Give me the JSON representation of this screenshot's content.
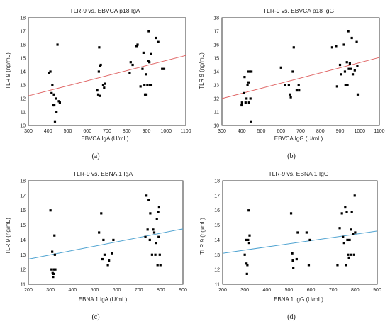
{
  "chart_data": [
    {
      "type": "scatter",
      "panel_label": "(a)",
      "title": "TLR-9 vs. EBVCA p18 IgA",
      "xlabel": "EBVCA IgA (U/mL)",
      "ylabel": "TLR 9 (ng/mL)",
      "xlim": [
        300,
        1100
      ],
      "ylim": [
        10,
        18
      ],
      "xticks": [
        300,
        400,
        500,
        600,
        700,
        800,
        900,
        1000,
        1100
      ],
      "yticks": [
        10,
        11,
        12,
        13,
        14,
        15,
        16,
        17,
        18
      ],
      "grid": true,
      "fit_color": "#e06666",
      "fit_line": [
        [
          300,
          12.2
        ],
        [
          1100,
          15.2
        ]
      ],
      "points": [
        [
          405,
          13.9
        ],
        [
          412,
          14.0
        ],
        [
          418,
          12.4
        ],
        [
          422,
          13.0
        ],
        [
          425,
          11.5
        ],
        [
          430,
          12.3
        ],
        [
          432,
          11.5
        ],
        [
          435,
          10.3
        ],
        [
          440,
          12.0
        ],
        [
          443,
          11.0
        ],
        [
          448,
          16.0
        ],
        [
          455,
          11.8
        ],
        [
          460,
          11.7
        ],
        [
          650,
          12.6
        ],
        [
          655,
          12.3
        ],
        [
          658,
          14.0
        ],
        [
          660,
          15.8
        ],
        [
          662,
          12.2
        ],
        [
          665,
          14.4
        ],
        [
          668,
          14.5
        ],
        [
          680,
          13.0
        ],
        [
          685,
          12.8
        ],
        [
          690,
          13.1
        ],
        [
          815,
          13.9
        ],
        [
          820,
          14.7
        ],
        [
          830,
          14.5
        ],
        [
          850,
          15.9
        ],
        [
          855,
          16.0
        ],
        [
          870,
          12.9
        ],
        [
          880,
          14.2
        ],
        [
          885,
          15.4
        ],
        [
          890,
          13.0
        ],
        [
          893,
          12.3
        ],
        [
          897,
          13.8
        ],
        [
          900,
          12.3
        ],
        [
          905,
          13.0
        ],
        [
          910,
          14.8
        ],
        [
          912,
          17.0
        ],
        [
          915,
          14.7
        ],
        [
          918,
          13.0
        ],
        [
          922,
          15.3
        ],
        [
          925,
          13.0
        ],
        [
          950,
          16.5
        ],
        [
          960,
          16.2
        ],
        [
          980,
          14.2
        ],
        [
          990,
          14.2
        ]
      ]
    },
    {
      "type": "scatter",
      "panel_label": "(b)",
      "title": "TLR-9 vs. EBVCA p18 IgG",
      "xlabel": "EBVCA IgG (U/mL)",
      "ylabel": "TLR 9 (ng/mL)",
      "xlim": [
        300,
        1100
      ],
      "ylim": [
        10,
        18
      ],
      "xticks": [
        300,
        400,
        500,
        600,
        700,
        800,
        900,
        1000,
        1100
      ],
      "yticks": [
        10,
        11,
        12,
        13,
        14,
        15,
        16,
        17,
        18
      ],
      "grid": true,
      "fit_color": "#e06666",
      "fit_line": [
        [
          300,
          12.0
        ],
        [
          1100,
          15.05
        ]
      ],
      "points": [
        [
          400,
          11.5
        ],
        [
          402,
          11.7
        ],
        [
          412,
          12.4
        ],
        [
          415,
          13.6
        ],
        [
          420,
          11.7
        ],
        [
          425,
          12.0
        ],
        [
          430,
          13.0
        ],
        [
          432,
          14.0
        ],
        [
          435,
          13.2
        ],
        [
          438,
          11.7
        ],
        [
          442,
          14.0
        ],
        [
          445,
          12.0
        ],
        [
          448,
          10.3
        ],
        [
          450,
          14.0
        ],
        [
          600,
          14.3
        ],
        [
          620,
          13.0
        ],
        [
          640,
          13.0
        ],
        [
          645,
          12.3
        ],
        [
          650,
          12.1
        ],
        [
          660,
          14.0
        ],
        [
          665,
          15.8
        ],
        [
          680,
          12.6
        ],
        [
          690,
          13.0
        ],
        [
          692,
          12.6
        ],
        [
          860,
          15.8
        ],
        [
          880,
          15.9
        ],
        [
          885,
          12.9
        ],
        [
          900,
          14.5
        ],
        [
          905,
          13.8
        ],
        [
          920,
          16.0
        ],
        [
          925,
          14.0
        ],
        [
          928,
          13.0
        ],
        [
          935,
          14.7
        ],
        [
          938,
          13.0
        ],
        [
          942,
          17.0
        ],
        [
          945,
          14.2
        ],
        [
          950,
          14.6
        ],
        [
          955,
          14.2
        ],
        [
          960,
          16.5
        ],
        [
          965,
          13.8
        ],
        [
          975,
          14.1
        ],
        [
          985,
          16.2
        ],
        [
          988,
          14.4
        ],
        [
          990,
          12.3
        ]
      ]
    },
    {
      "type": "scatter",
      "panel_label": "(c)",
      "title": "TLR-9 vs. EBNA 1 IgA",
      "xlabel": "EBNA 1 IgA (U/mL)",
      "ylabel": "TLR 9 (ng/mL)",
      "xlim": [
        200,
        900
      ],
      "ylim": [
        11,
        18
      ],
      "xticks": [
        200,
        300,
        400,
        500,
        600,
        700,
        800,
        900
      ],
      "yticks": [
        11,
        12,
        13,
        14,
        15,
        16,
        17,
        18
      ],
      "grid": true,
      "fit_color": "#4fa3d1",
      "fit_line": [
        [
          200,
          12.7
        ],
        [
          900,
          14.75
        ]
      ],
      "points": [
        [
          300,
          16.0
        ],
        [
          305,
          12.0
        ],
        [
          308,
          13.2
        ],
        [
          310,
          11.8
        ],
        [
          312,
          11.5
        ],
        [
          314,
          11.7
        ],
        [
          316,
          12.0
        ],
        [
          318,
          14.3
        ],
        [
          320,
          13.0
        ],
        [
          322,
          12.0
        ],
        [
          520,
          14.5
        ],
        [
          530,
          15.8
        ],
        [
          535,
          12.7
        ],
        [
          540,
          14.0
        ],
        [
          545,
          13.0
        ],
        [
          560,
          12.3
        ],
        [
          565,
          12.6
        ],
        [
          580,
          13.1
        ],
        [
          585,
          14.0
        ],
        [
          730,
          14.2
        ],
        [
          735,
          17.0
        ],
        [
          740,
          14.7
        ],
        [
          745,
          16.7
        ],
        [
          750,
          14.0
        ],
        [
          752,
          15.8
        ],
        [
          760,
          13.0
        ],
        [
          765,
          14.7
        ],
        [
          770,
          14.5
        ],
        [
          775,
          13.0
        ],
        [
          778,
          13.8
        ],
        [
          782,
          15.4
        ],
        [
          785,
          12.3
        ],
        [
          788,
          15.9
        ],
        [
          790,
          14.2
        ],
        [
          792,
          16.2
        ],
        [
          795,
          13.0
        ],
        [
          798,
          12.3
        ]
      ]
    },
    {
      "type": "scatter",
      "panel_label": "(d)",
      "title": "TLR-9 vs. EBNA 1 IgG",
      "xlabel": "EBNA 1 IgG (U/mL)",
      "ylabel": "TLR 9 (ng/mL)",
      "xlim": [
        200,
        900
      ],
      "ylim": [
        11,
        18
      ],
      "xticks": [
        200,
        300,
        400,
        500,
        600,
        700,
        800,
        900
      ],
      "yticks": [
        11,
        12,
        13,
        14,
        15,
        16,
        17,
        18
      ],
      "grid": true,
      "fit_color": "#4fa3d1",
      "fit_line": [
        [
          200,
          13.1
        ],
        [
          900,
          14.6
        ]
      ],
      "points": [
        [
          300,
          13.0
        ],
        [
          305,
          14.0
        ],
        [
          308,
          12.4
        ],
        [
          310,
          11.7
        ],
        [
          312,
          12.3
        ],
        [
          315,
          14.0
        ],
        [
          318,
          16.0
        ],
        [
          320,
          13.8
        ],
        [
          322,
          14.3
        ],
        [
          510,
          15.8
        ],
        [
          515,
          13.1
        ],
        [
          518,
          12.6
        ],
        [
          520,
          12.1
        ],
        [
          535,
          12.7
        ],
        [
          540,
          14.5
        ],
        [
          580,
          14.5
        ],
        [
          590,
          12.3
        ],
        [
          595,
          14.0
        ],
        [
          720,
          12.3
        ],
        [
          730,
          14.8
        ],
        [
          740,
          15.8
        ],
        [
          745,
          14.2
        ],
        [
          750,
          13.8
        ],
        [
          755,
          16.2
        ],
        [
          760,
          12.3
        ],
        [
          762,
          15.9
        ],
        [
          765,
          14.0
        ],
        [
          768,
          13.0
        ],
        [
          772,
          12.8
        ],
        [
          775,
          14.0
        ],
        [
          780,
          14.7
        ],
        [
          782,
          13.0
        ],
        [
          785,
          15.9
        ],
        [
          790,
          14.4
        ],
        [
          795,
          13.0
        ],
        [
          798,
          17.0
        ],
        [
          800,
          14.5
        ]
      ]
    }
  ]
}
